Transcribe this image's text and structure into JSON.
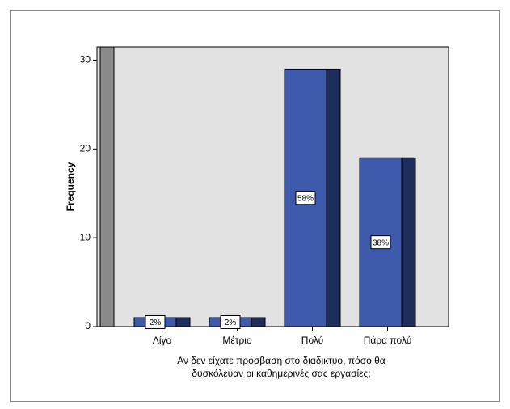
{
  "chart_data": {
    "type": "bar",
    "ylabel": "Frequency",
    "xlabel": [
      "Αν δεν είχατε πρόσβαση στο διαδικτυο, πόσο θα",
      "δυσκόλευαν οι καθημερινές σας εργασίες;"
    ],
    "categories": [
      "Λίγο",
      "Μέτριο",
      "Πολύ",
      "Πάρα πολύ"
    ],
    "values": [
      1,
      1,
      29,
      19
    ],
    "percent_labels": [
      "2%",
      "2%",
      "58%",
      "38%"
    ],
    "color": "#3d5aad",
    "ylim": [
      0,
      31.5
    ],
    "yticks": [
      0,
      10,
      20,
      30
    ]
  }
}
